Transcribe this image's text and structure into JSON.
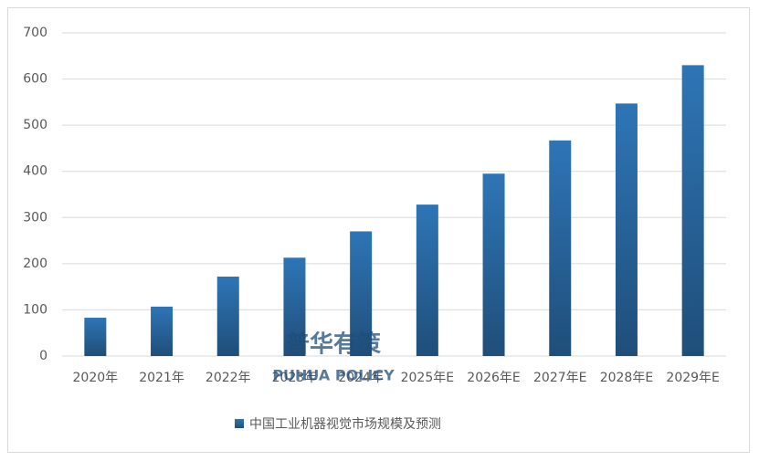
{
  "chart_data": {
    "type": "bar",
    "categories": [
      "2020年",
      "2021年",
      "2022年",
      "2023年",
      "2024年",
      "2025年E",
      "2026年E",
      "2027年E",
      "2028年E",
      "2029年E"
    ],
    "series": [
      {
        "name": "中国工业机器视觉市场规模及预测",
        "color": "#2e75b6",
        "values": [
          83,
          107,
          172,
          213,
          270,
          328,
          395,
          467,
          547,
          630
        ]
      }
    ],
    "ylim": [
      0,
      700
    ],
    "yticks": [
      0,
      100,
      200,
      300,
      400,
      500,
      600,
      700
    ],
    "grid": true,
    "watermark": [
      "普华有策",
      "PUHUA POLICY"
    ]
  }
}
